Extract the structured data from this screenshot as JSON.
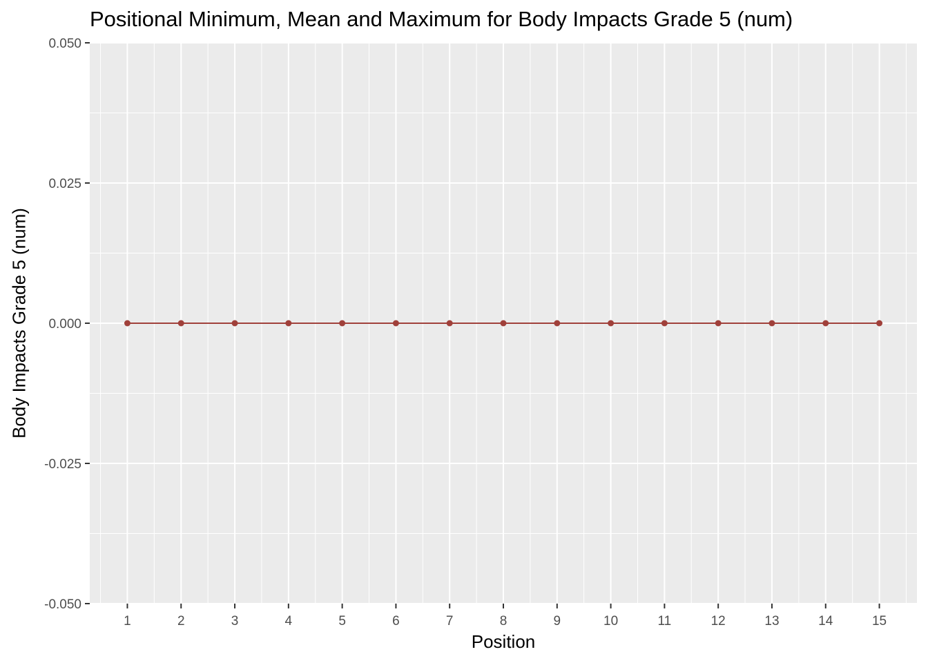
{
  "chart_data": {
    "type": "line",
    "title": "Positional Minimum, Mean and Maximum for Body Impacts Grade 5 (num)",
    "xlabel": "Position",
    "ylabel": "Body Impacts Grade 5 (num)",
    "x": [
      1,
      2,
      3,
      4,
      5,
      6,
      7,
      8,
      9,
      10,
      11,
      12,
      13,
      14,
      15
    ],
    "x_tick_labels": [
      "1",
      "2",
      "3",
      "4",
      "5",
      "6",
      "7",
      "8",
      "9",
      "10",
      "11",
      "12",
      "13",
      "14",
      "15"
    ],
    "xlim": [
      0.3,
      15.7
    ],
    "ylim": [
      -0.05,
      0.05
    ],
    "y_ticks": [
      -0.05,
      -0.025,
      0,
      0.025,
      0.05
    ],
    "y_tick_labels": [
      "-0.050",
      "-0.025",
      "0.000",
      "0.025",
      "0.050"
    ],
    "series": [
      {
        "values": [
          0,
          0,
          0,
          0,
          0,
          0,
          0,
          0,
          0,
          0,
          0,
          0,
          0,
          0,
          0
        ],
        "color": "#a0403a"
      }
    ],
    "grid": true,
    "panel_background": "#ebebeb",
    "grid_color": "#ffffff",
    "legend": "none"
  }
}
